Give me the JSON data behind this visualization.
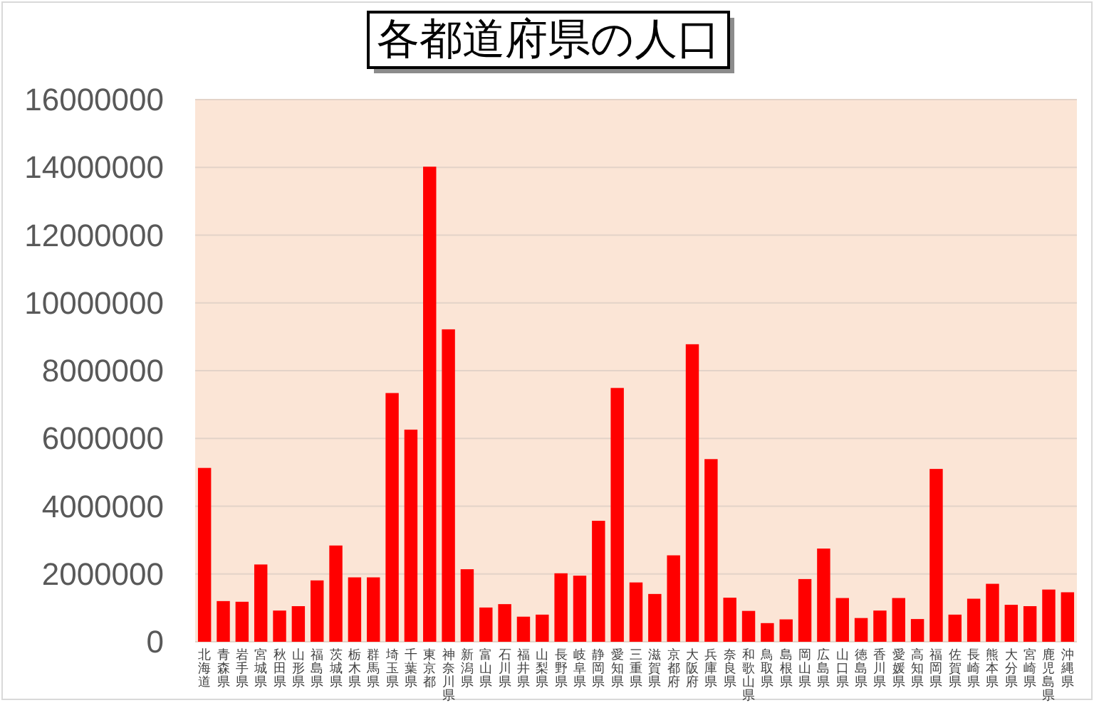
{
  "chart_data": {
    "type": "bar",
    "title": "各都道府県の人口",
    "categories": [
      "北海道",
      "青森県",
      "岩手県",
      "宮城県",
      "秋田県",
      "山形県",
      "福島県",
      "茨城県",
      "栃木県",
      "群馬県",
      "埼玉県",
      "千葉県",
      "東京都",
      "神奈川県",
      "新潟県",
      "富山県",
      "石川県",
      "福井県",
      "山梨県",
      "長野県",
      "岐阜県",
      "静岡県",
      "愛知県",
      "三重県",
      "滋賀県",
      "京都府",
      "大阪府",
      "兵庫県",
      "奈良県",
      "和歌山県",
      "鳥取県",
      "島根県",
      "岡山県",
      "広島県",
      "山口県",
      "徳島県",
      "香川県",
      "愛媛県",
      "高知県",
      "福岡県",
      "佐賀県",
      "長崎県",
      "熊本県",
      "大分県",
      "宮崎県",
      "鹿児島県",
      "沖縄県"
    ],
    "values": [
      5130000,
      1200000,
      1180000,
      2280000,
      920000,
      1050000,
      1810000,
      2840000,
      1900000,
      1900000,
      7340000,
      6260000,
      14020000,
      9220000,
      2140000,
      1010000,
      1110000,
      740000,
      800000,
      2020000,
      1950000,
      3570000,
      7490000,
      1750000,
      1410000,
      2550000,
      8780000,
      5390000,
      1300000,
      910000,
      550000,
      660000,
      1850000,
      2750000,
      1290000,
      700000,
      920000,
      1290000,
      670000,
      5100000,
      800000,
      1270000,
      1710000,
      1090000,
      1050000,
      1540000,
      1460000
    ],
    "color": "#ff0000",
    "ylim": [
      0,
      16000000
    ],
    "yticks": [
      0,
      2000000,
      4000000,
      6000000,
      8000000,
      10000000,
      12000000,
      14000000,
      16000000
    ],
    "grid": "y"
  }
}
